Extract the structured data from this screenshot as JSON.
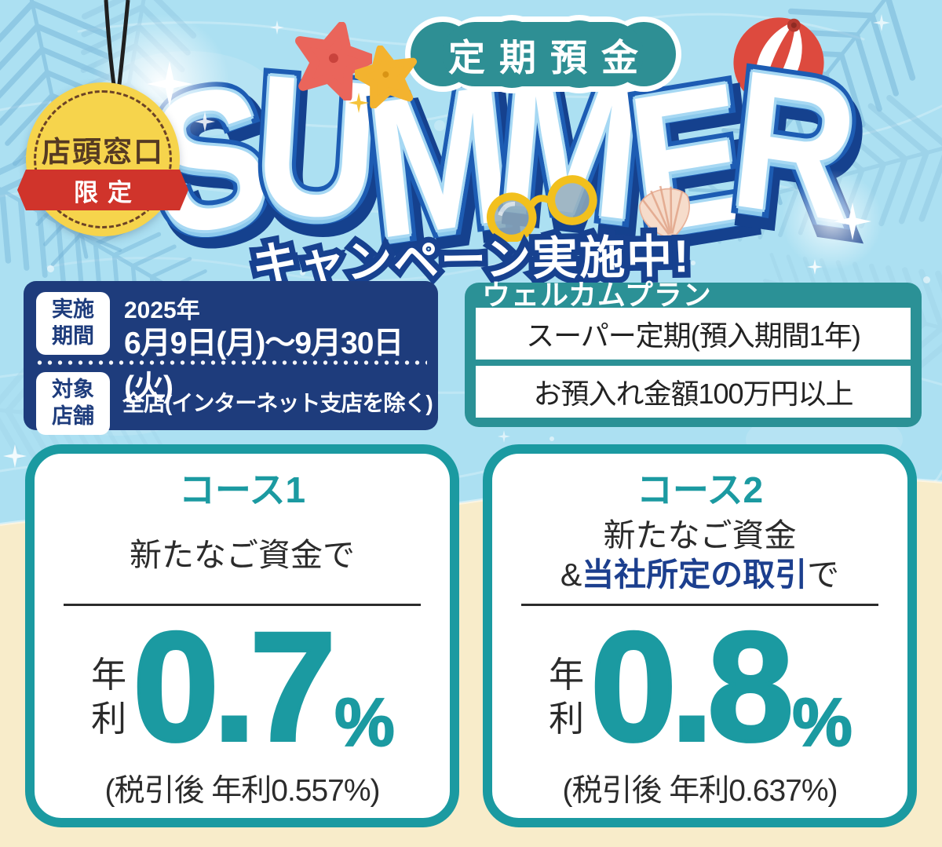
{
  "poster": {
    "tag": {
      "label": "店頭窓口",
      "ribbon": "限定"
    },
    "header": {
      "deposit_badge": "定期預金",
      "summer": "SUMMER",
      "campaign": "キャンペーン実施中!"
    },
    "info": {
      "period_badge": "実施\n期間",
      "period_year": "2025年",
      "period_dates": "6月9日(月)〜9月30日(火)",
      "stores_badge": "対象\n店舗",
      "stores_value": "全店(インターネット支店を除く)"
    },
    "plan": {
      "title": "ウェルカムプラン",
      "row1": "スーパー定期(預入期間1年)",
      "row2": "お預入れ金額100万円以上"
    },
    "courses": [
      {
        "title": "コース1",
        "cond1": "新たなご資金で",
        "cond2_prefix": "",
        "cond2_em": "",
        "cond2_suffix": "",
        "rate_label": "年利",
        "rate": "0.7",
        "unit": "%",
        "after_tax": "(税引後 年利0.557%)"
      },
      {
        "title": "コース2",
        "cond1": "新たなご資金",
        "cond2_prefix": "&",
        "cond2_em": "当社所定の取引",
        "cond2_suffix": "で",
        "rate_label": "年利",
        "rate": "0.8",
        "unit": "%",
        "after_tax": "(税引後 年利0.637%)"
      }
    ],
    "colors": {
      "water": "#ACE0F2",
      "sand": "#F8ECCA",
      "navy_box": "#1E3C7C",
      "plan_teal": "#2B9196",
      "badge_teal": "#2E8F94",
      "card_teal": "#1B9AA1",
      "em_navy": "#1C3F8E",
      "summer_outline": "#1D5CB3",
      "summer_shadow": "#15418E",
      "campaign_outline": "#17418F",
      "ribbon_red": "#D0342B",
      "tag_yellow": "#F6D44C",
      "tag_text_brown": "#553A23",
      "dark_text": "#2B2B2B"
    }
  }
}
